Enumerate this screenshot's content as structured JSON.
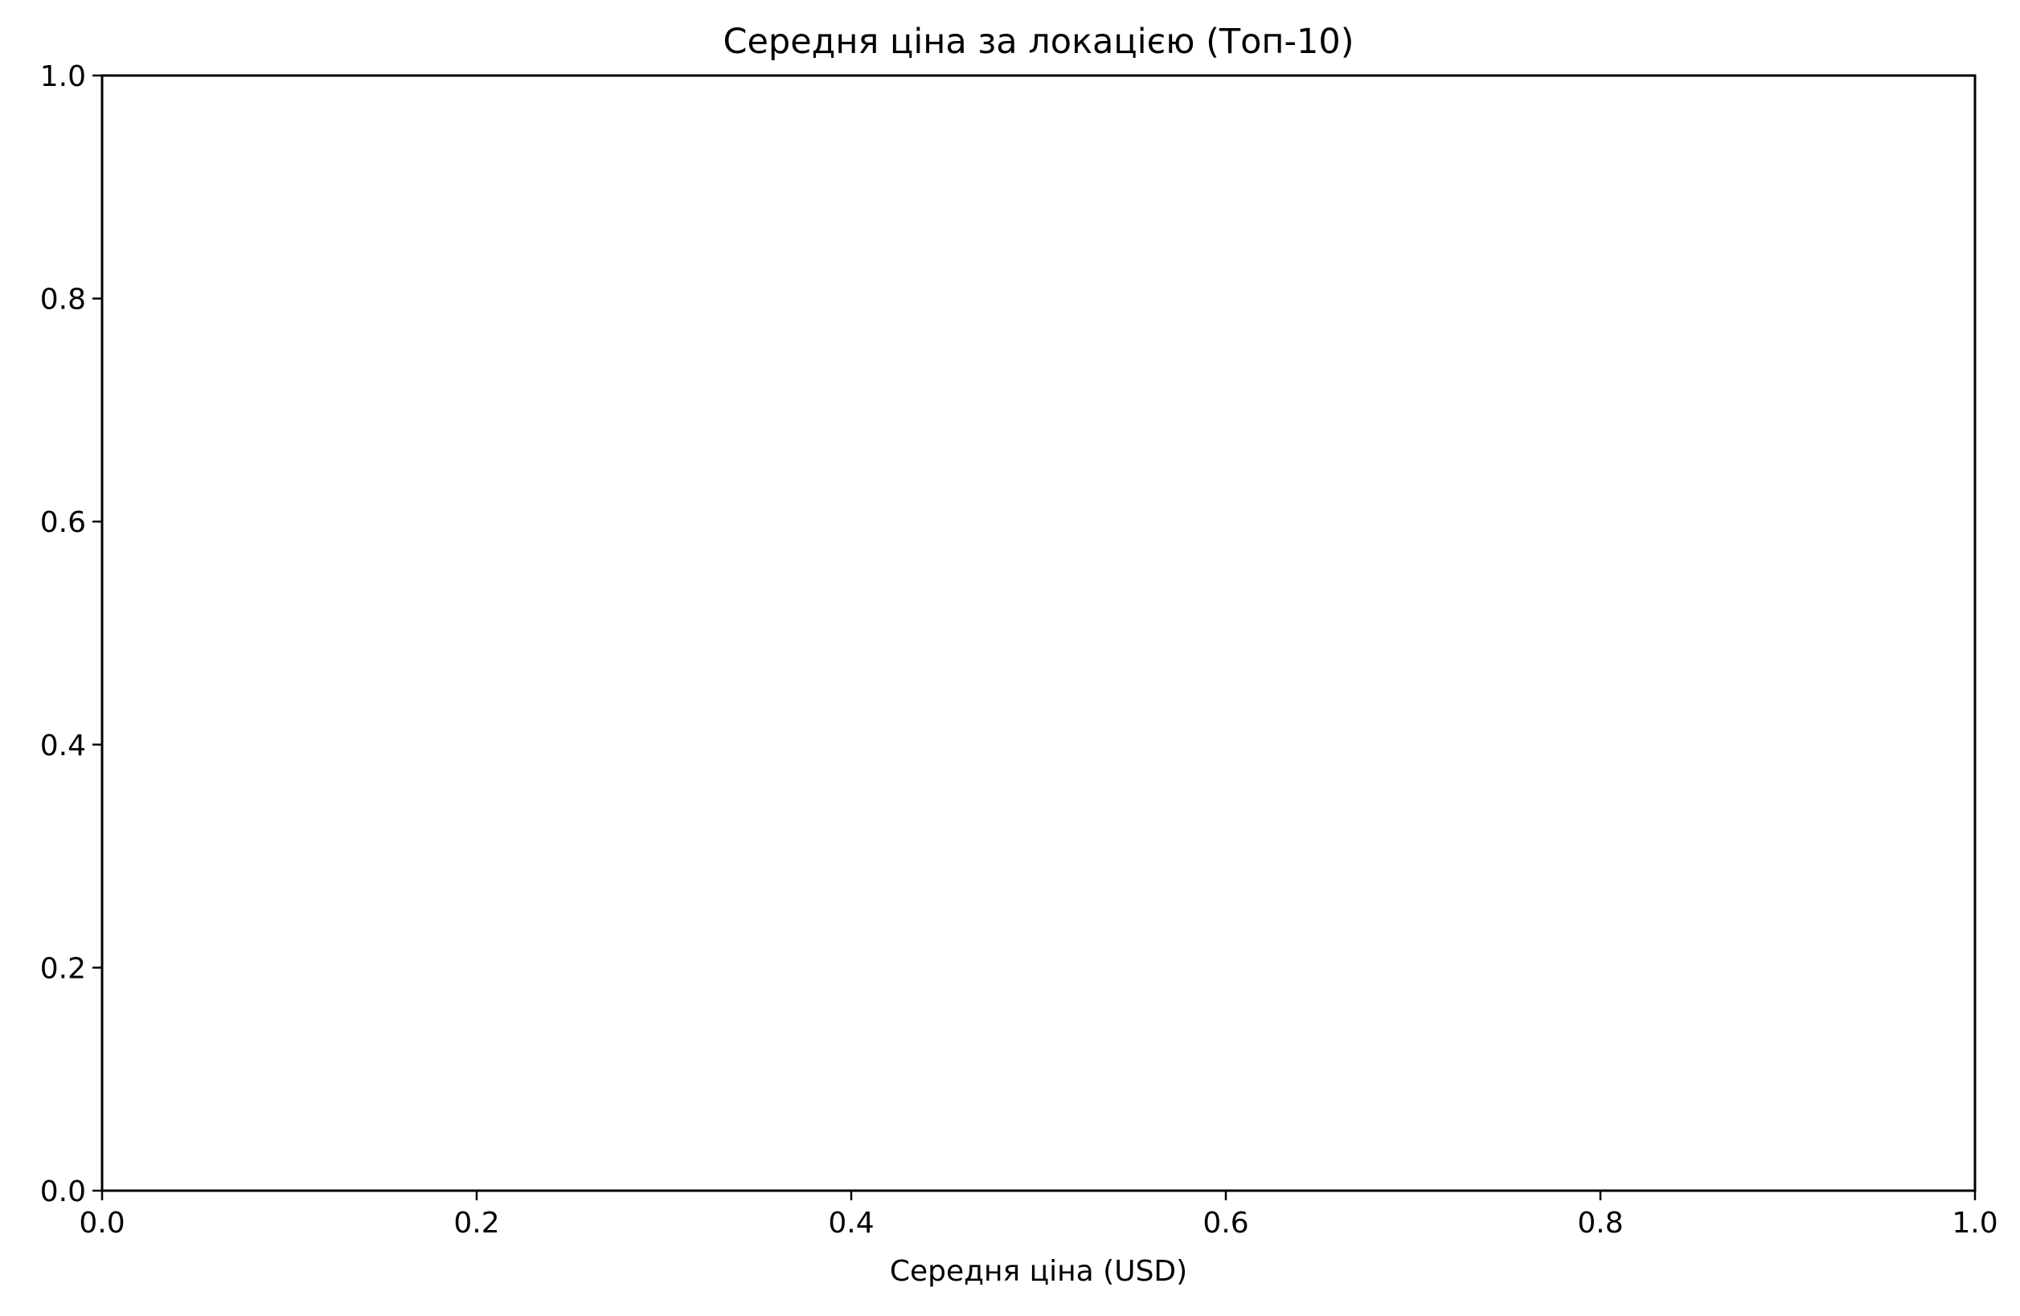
{
  "chart_data": {
    "type": "bar",
    "title": "Середня ціна за локацією (Топ-10)",
    "xlabel": "Середня ціна (USD)",
    "ylabel": "",
    "categories": [],
    "values": [],
    "xlim": [
      0.0,
      1.0
    ],
    "ylim": [
      0.0,
      1.0
    ],
    "x_ticks": [
      "0.0",
      "0.2",
      "0.4",
      "0.6",
      "0.8",
      "1.0"
    ],
    "y_ticks": [
      "0.0",
      "0.2",
      "0.4",
      "0.6",
      "0.8",
      "1.0"
    ],
    "grid": false
  }
}
